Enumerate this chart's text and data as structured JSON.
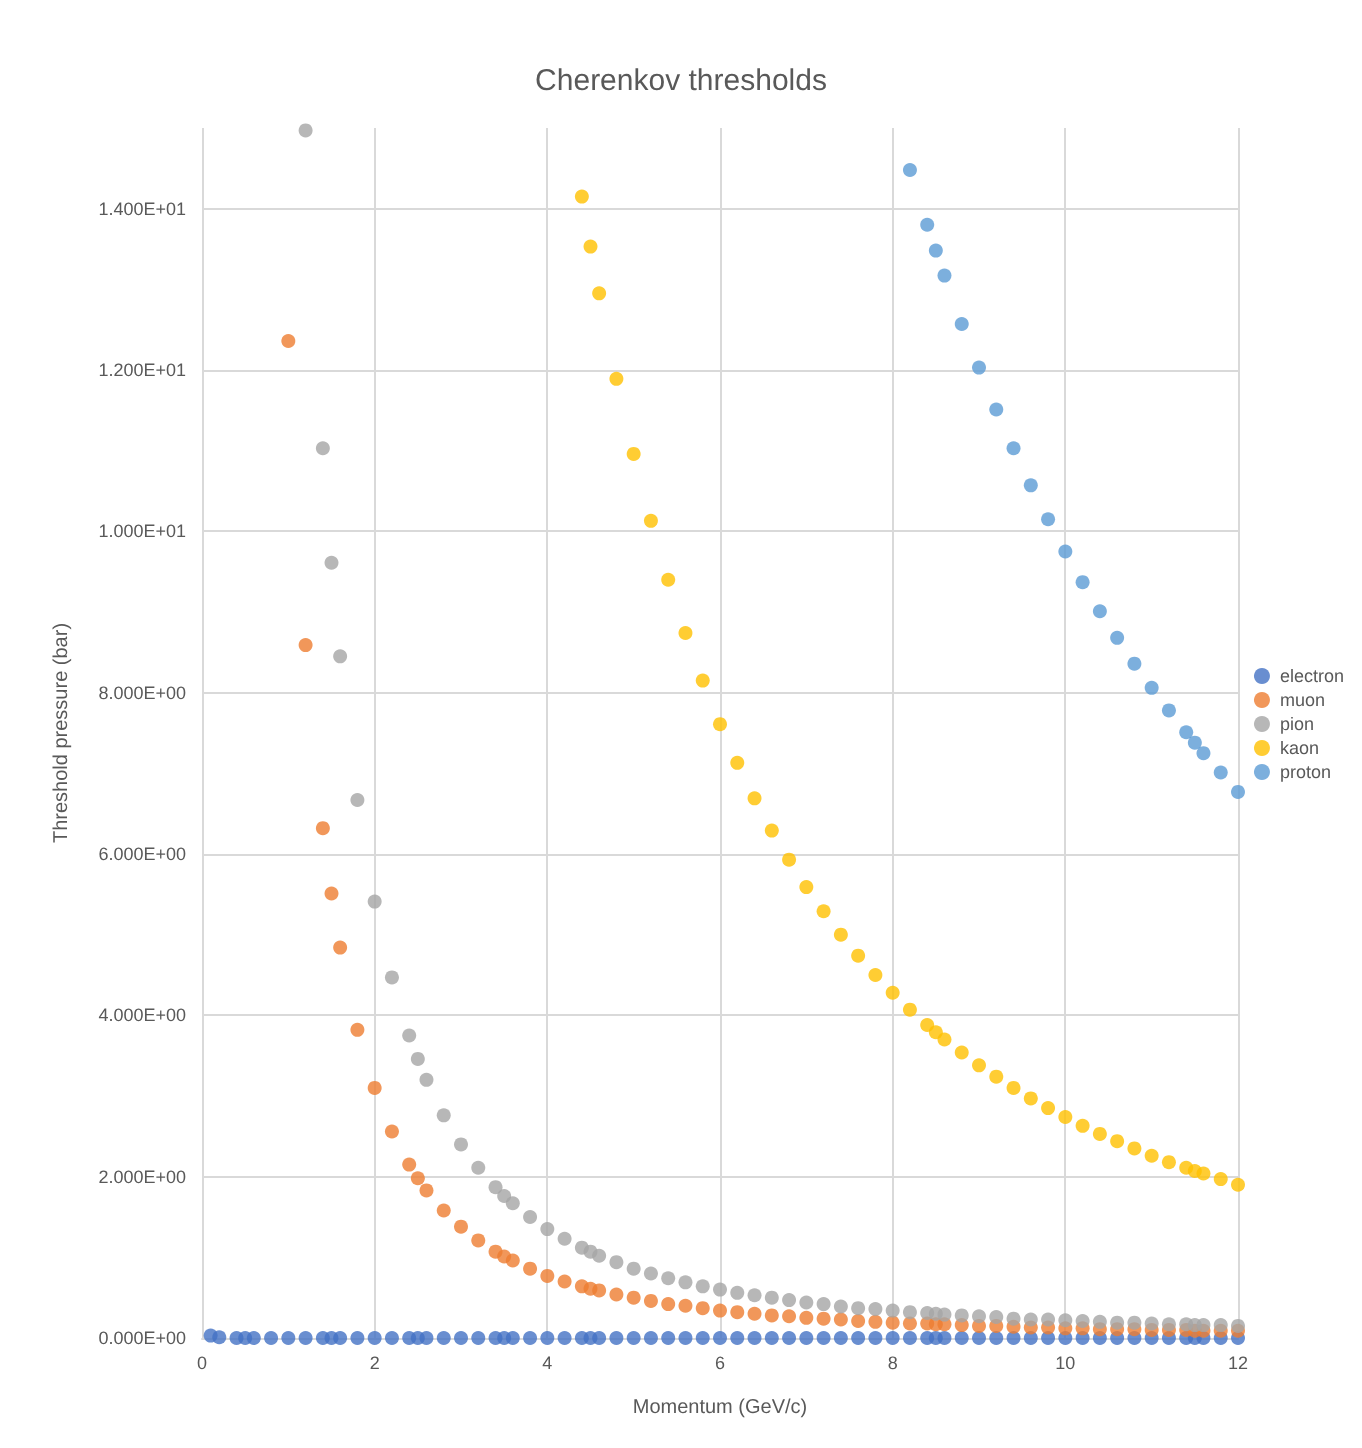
{
  "chart_data": {
    "type": "scatter",
    "title": "Cherenkov thresholds",
    "xlabel": "Momentum (GeV/c)",
    "ylabel": "Threshold pressure (bar)",
    "xlim": [
      0,
      12
    ],
    "xticks": [
      0,
      2,
      4,
      6,
      8,
      10,
      12
    ],
    "ylim": [
      0,
      15
    ],
    "yticks": [
      {
        "value": 0,
        "label": "0.000E+00"
      },
      {
        "value": 2,
        "label": "2.000E+00"
      },
      {
        "value": 4,
        "label": "4.000E+00"
      },
      {
        "value": 6,
        "label": "6.000E+00"
      },
      {
        "value": 8,
        "label": "8.000E+00"
      },
      {
        "value": 10,
        "label": "1.000E+01"
      },
      {
        "value": 12,
        "label": "1.200E+01"
      },
      {
        "value": 14,
        "label": "1.400E+01"
      }
    ],
    "grid": true,
    "legend": "right",
    "marker": "circle",
    "series": [
      {
        "name": "electron",
        "color": "#4472c4",
        "x": [
          0.1,
          0.2,
          0.4,
          0.5,
          0.6,
          0.8,
          1.0,
          1.2,
          1.4,
          1.5,
          1.6,
          1.8,
          2.0,
          2.2,
          2.4,
          2.5,
          2.6,
          2.8,
          3.0,
          3.2,
          3.4,
          3.5,
          3.6,
          3.8,
          4.0,
          4.2,
          4.4,
          4.5,
          4.6,
          4.8,
          5.0,
          5.2,
          5.4,
          5.6,
          5.8,
          6.0,
          6.2,
          6.4,
          6.6,
          6.8,
          7.0,
          7.2,
          7.4,
          7.6,
          7.8,
          8.0,
          8.2,
          8.4,
          8.5,
          8.6,
          8.8,
          9.0,
          9.2,
          9.4,
          9.6,
          9.8,
          10.0,
          10.2,
          10.4,
          10.6,
          10.8,
          11.0,
          11.2,
          11.4,
          11.5,
          11.6,
          11.8,
          12.0
        ],
        "values": [
          0.03,
          0.01,
          0,
          0,
          0,
          0,
          0,
          0,
          0,
          0,
          0,
          0,
          0,
          0,
          0,
          0,
          0,
          0,
          0,
          0,
          0,
          0,
          0,
          0,
          0,
          0,
          0,
          0,
          0,
          0,
          0,
          0,
          0,
          0,
          0,
          0,
          0,
          0,
          0,
          0,
          0,
          0,
          0,
          0,
          0,
          0,
          0,
          0,
          0,
          0,
          0,
          0,
          0,
          0,
          0,
          0,
          0,
          0,
          0,
          0,
          0,
          0,
          0,
          0,
          0,
          0,
          0,
          0
        ]
      },
      {
        "name": "muon",
        "color": "#ed7d31",
        "x": [
          1.0,
          1.2,
          1.4,
          1.5,
          1.6,
          1.8,
          2.0,
          2.2,
          2.4,
          2.5,
          2.6,
          2.8,
          3.0,
          3.2,
          3.4,
          3.5,
          3.6,
          3.8,
          4.0,
          4.2,
          4.4,
          4.5,
          4.6,
          4.8,
          5.0,
          5.2,
          5.4,
          5.6,
          5.8,
          6.0,
          6.2,
          6.4,
          6.6,
          6.8,
          7.0,
          7.2,
          7.4,
          7.6,
          7.8,
          8.0,
          8.2,
          8.4,
          8.5,
          8.6,
          8.8,
          9.0,
          9.2,
          9.4,
          9.6,
          9.8,
          10.0,
          10.2,
          10.4,
          10.6,
          10.8,
          11.0,
          11.2,
          11.4,
          11.5,
          11.6,
          11.8,
          12.0
        ],
        "values": [
          12.36,
          8.59,
          6.32,
          5.51,
          4.84,
          3.82,
          3.1,
          2.56,
          2.15,
          1.98,
          1.83,
          1.58,
          1.38,
          1.21,
          1.07,
          1.01,
          0.96,
          0.86,
          0.77,
          0.7,
          0.64,
          0.61,
          0.59,
          0.54,
          0.5,
          0.46,
          0.42,
          0.4,
          0.37,
          0.34,
          0.32,
          0.3,
          0.28,
          0.27,
          0.25,
          0.24,
          0.23,
          0.21,
          0.2,
          0.19,
          0.18,
          0.18,
          0.17,
          0.17,
          0.16,
          0.15,
          0.15,
          0.14,
          0.13,
          0.13,
          0.12,
          0.12,
          0.11,
          0.11,
          0.11,
          0.1,
          0.1,
          0.1,
          0.09,
          0.09,
          0.09,
          0.09
        ]
      },
      {
        "name": "pion",
        "color": "#a5a5a5",
        "x": [
          1.2,
          1.4,
          1.5,
          1.6,
          1.8,
          2.0,
          2.2,
          2.4,
          2.5,
          2.6,
          2.8,
          3.0,
          3.2,
          3.4,
          3.5,
          3.6,
          3.8,
          4.0,
          4.2,
          4.4,
          4.5,
          4.6,
          4.8,
          5.0,
          5.2,
          5.4,
          5.6,
          5.8,
          6.0,
          6.2,
          6.4,
          6.6,
          6.8,
          7.0,
          7.2,
          7.4,
          7.6,
          7.8,
          8.0,
          8.2,
          8.4,
          8.5,
          8.6,
          8.8,
          9.0,
          9.2,
          9.4,
          9.6,
          9.8,
          10.0,
          10.2,
          10.4,
          10.6,
          10.8,
          11.0,
          11.2,
          11.4,
          11.5,
          11.6,
          11.8,
          12.0
        ],
        "values": [
          14.97,
          11.03,
          9.61,
          8.45,
          6.67,
          5.41,
          4.47,
          3.75,
          3.46,
          3.2,
          2.76,
          2.4,
          2.11,
          1.87,
          1.76,
          1.67,
          1.5,
          1.35,
          1.23,
          1.12,
          1.07,
          1.02,
          0.94,
          0.86,
          0.8,
          0.74,
          0.69,
          0.64,
          0.6,
          0.56,
          0.53,
          0.5,
          0.47,
          0.44,
          0.42,
          0.39,
          0.37,
          0.36,
          0.34,
          0.32,
          0.31,
          0.3,
          0.29,
          0.28,
          0.27,
          0.26,
          0.24,
          0.23,
          0.23,
          0.22,
          0.21,
          0.2,
          0.19,
          0.19,
          0.18,
          0.17,
          0.17,
          0.16,
          0.16,
          0.16,
          0.15
        ]
      },
      {
        "name": "kaon",
        "color": "#ffc000",
        "x": [
          4.4,
          4.5,
          4.6,
          4.8,
          5.0,
          5.2,
          5.4,
          5.6,
          5.8,
          6.0,
          6.2,
          6.4,
          6.6,
          6.8,
          7.0,
          7.2,
          7.4,
          7.6,
          7.8,
          8.0,
          8.2,
          8.4,
          8.5,
          8.6,
          8.8,
          9.0,
          9.2,
          9.4,
          9.6,
          9.8,
          10.0,
          10.2,
          10.4,
          10.6,
          10.8,
          11.0,
          11.2,
          11.4,
          11.5,
          11.6,
          11.8,
          12.0
        ],
        "values": [
          14.15,
          13.53,
          12.95,
          11.89,
          10.96,
          10.13,
          9.4,
          8.74,
          8.15,
          7.61,
          7.13,
          6.69,
          6.29,
          5.93,
          5.59,
          5.29,
          5.0,
          4.74,
          4.5,
          4.28,
          4.07,
          3.88,
          3.79,
          3.7,
          3.54,
          3.38,
          3.24,
          3.1,
          2.97,
          2.85,
          2.74,
          2.63,
          2.53,
          2.44,
          2.35,
          2.26,
          2.18,
          2.11,
          2.07,
          2.04,
          1.97,
          1.9
        ]
      },
      {
        "name": "proton",
        "color": "#5b9bd5",
        "x": [
          8.2,
          8.4,
          8.5,
          8.6,
          8.8,
          9.0,
          9.2,
          9.4,
          9.6,
          9.8,
          10.0,
          10.2,
          10.4,
          10.6,
          10.8,
          11.0,
          11.2,
          11.4,
          11.5,
          11.6,
          11.8,
          12.0
        ],
        "values": [
          14.48,
          13.8,
          13.48,
          13.17,
          12.57,
          12.03,
          11.51,
          11.03,
          10.57,
          10.15,
          9.75,
          9.37,
          9.01,
          8.68,
          8.36,
          8.06,
          7.78,
          7.51,
          7.38,
          7.25,
          7.01,
          6.77
        ]
      }
    ]
  }
}
